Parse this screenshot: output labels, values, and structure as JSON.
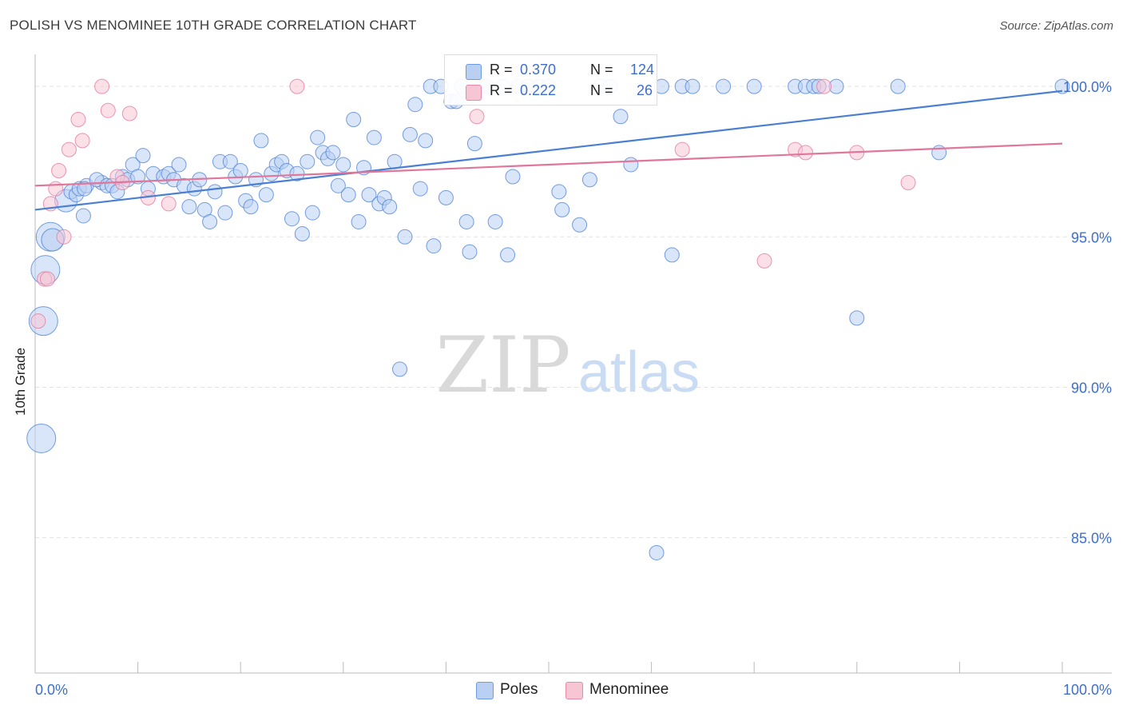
{
  "title": "POLISH VS MENOMINEE 10TH GRADE CORRELATION CHART",
  "source": "Source: ZipAtlas.com",
  "watermark": {
    "zip": "ZIP",
    "atlas": "atlas"
  },
  "stats": [
    {
      "r_label": "R =",
      "r_value": "0.370",
      "n_label": "N =",
      "n_value": "124",
      "color": "#6b9be3",
      "fill": "#b9d0f3"
    },
    {
      "r_label": "R =",
      "r_value": "0.222",
      "n_label": "N =",
      "n_value": "26",
      "color": "#e58aa8",
      "fill": "#f7c6d5"
    }
  ],
  "legend": [
    {
      "label": "Poles",
      "color": "#6b9be3",
      "fill": "#b9d0f3"
    },
    {
      "label": "Menominee",
      "color": "#e58aa8",
      "fill": "#f7c6d5"
    }
  ],
  "chart_data": {
    "type": "scatter",
    "title": "POLISH VS MENOMINEE 10TH GRADE CORRELATION CHART",
    "xlabel": "",
    "ylabel": "10th Grade",
    "xlim": [
      0,
      100
    ],
    "ylim": [
      80.5,
      100.8
    ],
    "x_tick_labels": [
      "0.0%",
      "100.0%"
    ],
    "y_ticks": [
      85,
      90,
      95,
      100
    ],
    "y_tick_labels": [
      "85.0%",
      "90.0%",
      "95.0%",
      "100.0%"
    ],
    "grid": true,
    "legend_position": "bottom-center",
    "series": [
      {
        "name": "Poles",
        "color": "#4a7fd4",
        "fill": "#b9d0f3",
        "trendline": {
          "x": [
            0,
            100
          ],
          "y": [
            95.9,
            99.85
          ]
        },
        "points": [
          [
            0.6,
            88.3,
            3
          ],
          [
            0.8,
            92.2,
            3
          ],
          [
            1.0,
            93.9,
            3
          ],
          [
            1.5,
            95.0,
            3
          ],
          [
            1.7,
            94.9,
            2
          ],
          [
            3.0,
            96.2,
            2
          ],
          [
            3.5,
            96.5,
            1
          ],
          [
            4.0,
            96.4,
            1
          ],
          [
            4.3,
            96.6,
            1
          ],
          [
            4.7,
            95.7,
            1
          ],
          [
            5.0,
            96.7,
            1
          ],
          [
            4.8,
            96.6,
            1
          ],
          [
            6.5,
            96.8,
            1
          ],
          [
            6.0,
            96.9,
            1
          ],
          [
            7.0,
            96.7,
            1
          ],
          [
            7.5,
            96.7,
            1
          ],
          [
            8.0,
            96.5,
            1
          ],
          [
            8.5,
            97.0,
            1
          ],
          [
            9.0,
            96.9,
            1
          ],
          [
            9.5,
            97.4,
            1
          ],
          [
            10.0,
            97.0,
            1
          ],
          [
            10.5,
            97.7,
            1
          ],
          [
            11.0,
            96.6,
            1
          ],
          [
            11.5,
            97.1,
            1
          ],
          [
            12.5,
            97.0,
            1
          ],
          [
            13.0,
            97.1,
            1
          ],
          [
            13.5,
            96.9,
            1
          ],
          [
            14.0,
            97.4,
            1
          ],
          [
            14.5,
            96.7,
            1
          ],
          [
            15.0,
            96.0,
            1
          ],
          [
            15.5,
            96.6,
            1
          ],
          [
            16.0,
            96.9,
            1
          ],
          [
            16.5,
            95.9,
            1
          ],
          [
            17.0,
            95.5,
            1
          ],
          [
            17.5,
            96.5,
            1
          ],
          [
            18.0,
            97.5,
            1
          ],
          [
            18.5,
            95.8,
            1
          ],
          [
            19.0,
            97.5,
            1
          ],
          [
            19.5,
            97.0,
            1
          ],
          [
            20.0,
            97.2,
            1
          ],
          [
            20.5,
            96.2,
            1
          ],
          [
            21.0,
            96.0,
            1
          ],
          [
            21.5,
            96.9,
            1
          ],
          [
            22.0,
            98.2,
            1
          ],
          [
            22.5,
            96.4,
            1
          ],
          [
            23.0,
            97.1,
            1
          ],
          [
            23.5,
            97.4,
            1
          ],
          [
            24.0,
            97.5,
            1
          ],
          [
            24.5,
            97.2,
            1
          ],
          [
            25.0,
            95.6,
            1
          ],
          [
            25.5,
            97.1,
            1
          ],
          [
            26.0,
            95.1,
            1
          ],
          [
            26.5,
            97.5,
            1
          ],
          [
            27.0,
            95.8,
            1
          ],
          [
            27.5,
            98.3,
            1
          ],
          [
            28.0,
            97.8,
            1
          ],
          [
            28.5,
            97.6,
            1
          ],
          [
            29.0,
            97.8,
            1
          ],
          [
            29.5,
            96.7,
            1
          ],
          [
            30.0,
            97.4,
            1
          ],
          [
            30.5,
            96.4,
            1
          ],
          [
            31.0,
            98.9,
            1
          ],
          [
            31.5,
            95.5,
            1
          ],
          [
            32.0,
            97.3,
            1
          ],
          [
            32.5,
            96.4,
            1
          ],
          [
            33.0,
            98.3,
            1
          ],
          [
            33.5,
            96.1,
            1
          ],
          [
            34.0,
            96.3,
            1
          ],
          [
            34.5,
            96.0,
            1
          ],
          [
            35.0,
            97.5,
            1
          ],
          [
            35.5,
            90.6,
            1
          ],
          [
            36.0,
            95.0,
            1
          ],
          [
            36.5,
            98.4,
            1
          ],
          [
            37.0,
            99.4,
            1
          ],
          [
            37.5,
            96.6,
            1
          ],
          [
            38.0,
            98.2,
            1
          ],
          [
            38.5,
            100.0,
            1
          ],
          [
            38.8,
            94.7,
            1
          ],
          [
            39.5,
            100.0,
            1
          ],
          [
            40.0,
            96.3,
            1
          ],
          [
            40.5,
            99.5,
            1
          ],
          [
            41.0,
            99.5,
            1
          ],
          [
            41.5,
            100.0,
            1
          ],
          [
            42.0,
            95.5,
            1
          ],
          [
            42.3,
            94.5,
            1
          ],
          [
            42.8,
            98.1,
            1
          ],
          [
            43.5,
            100.0,
            1
          ],
          [
            44.0,
            100.0,
            1
          ],
          [
            44.8,
            95.5,
            1
          ],
          [
            45.5,
            100.0,
            1
          ],
          [
            46.0,
            94.4,
            1
          ],
          [
            46.5,
            97.0,
            1
          ],
          [
            47.0,
            100.0,
            1
          ],
          [
            48.0,
            100.0,
            1
          ],
          [
            49.0,
            100.0,
            1
          ],
          [
            51.0,
            96.5,
            1
          ],
          [
            51.3,
            95.9,
            1
          ],
          [
            53.0,
            95.4,
            1
          ],
          [
            54.0,
            96.9,
            1
          ],
          [
            55.0,
            100.0,
            1
          ],
          [
            56.0,
            100.0,
            1
          ],
          [
            57.0,
            99.0,
            1
          ],
          [
            58.0,
            97.4,
            1
          ],
          [
            60.5,
            84.5,
            1
          ],
          [
            61.0,
            100.0,
            1
          ],
          [
            62.0,
            94.4,
            1
          ],
          [
            63.0,
            100.0,
            1
          ],
          [
            64.0,
            100.0,
            1
          ],
          [
            67.0,
            100.0,
            1
          ],
          [
            70.0,
            100.0,
            1
          ],
          [
            74.0,
            100.0,
            1
          ],
          [
            75.0,
            100.0,
            1
          ],
          [
            75.8,
            100.0,
            1
          ],
          [
            76.3,
            100.0,
            1
          ],
          [
            78.0,
            100.0,
            1
          ],
          [
            80.0,
            92.3,
            1
          ],
          [
            84.0,
            100.0,
            1
          ],
          [
            88.0,
            97.8,
            1
          ],
          [
            100.0,
            100.0,
            1
          ],
          [
            50.0,
            100.0,
            1
          ]
        ]
      },
      {
        "name": "Menominee",
        "color": "#e0769b",
        "fill": "#f7c6d5",
        "trendline": {
          "x": [
            0,
            100
          ],
          "y": [
            96.7,
            98.1
          ]
        },
        "points": [
          [
            0.3,
            92.2,
            1
          ],
          [
            0.9,
            93.6,
            1
          ],
          [
            1.2,
            93.6,
            1
          ],
          [
            1.5,
            96.1,
            1
          ],
          [
            2.0,
            96.6,
            1
          ],
          [
            2.3,
            97.2,
            1
          ],
          [
            2.8,
            95.0,
            1
          ],
          [
            3.3,
            97.9,
            1
          ],
          [
            4.2,
            98.9,
            1
          ],
          [
            4.6,
            98.2,
            1
          ],
          [
            6.5,
            100.0,
            1
          ],
          [
            7.1,
            99.2,
            1
          ],
          [
            8.0,
            97.0,
            1
          ],
          [
            8.5,
            96.8,
            1
          ],
          [
            9.2,
            99.1,
            1
          ],
          [
            11.0,
            96.3,
            1
          ],
          [
            13.0,
            96.1,
            1
          ],
          [
            25.5,
            100.0,
            1
          ],
          [
            43.0,
            99.0,
            1
          ],
          [
            63.0,
            97.9,
            1
          ],
          [
            71.0,
            94.2,
            1
          ],
          [
            74.0,
            97.9,
            1
          ],
          [
            75.0,
            97.8,
            1
          ],
          [
            76.8,
            100.0,
            1
          ],
          [
            80.0,
            97.8,
            1
          ],
          [
            85.0,
            96.8,
            1
          ]
        ]
      }
    ]
  }
}
